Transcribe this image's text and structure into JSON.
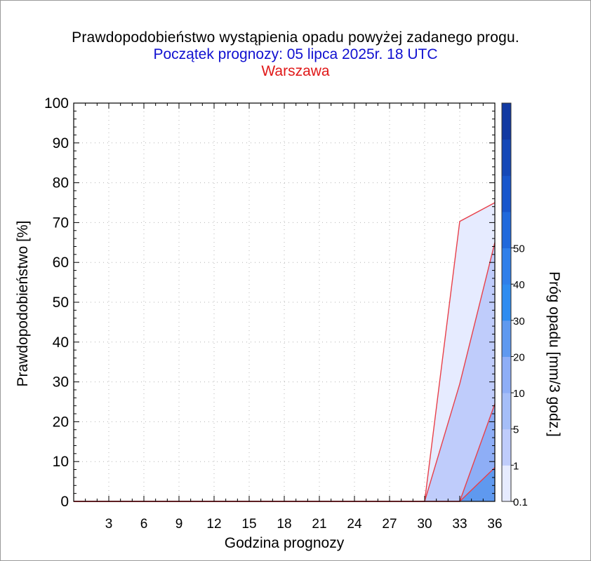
{
  "chart_data": {
    "type": "area",
    "title": "Prawdopodobieństwo wystąpienia opadu powyżej zadanego progu.",
    "subtitle": "Początek prognozy: 05 lipca 2025r. 18 UTC",
    "location": "Warszawa",
    "xlabel": "Godzina prognozy",
    "ylabel": "Prawdopodobieństwo [%]",
    "colorbar_label": "Próg opadu [mm/3 godz.]",
    "xlim": [
      0,
      36
    ],
    "ylim": [
      0,
      100
    ],
    "x_ticks": [
      "3",
      "6",
      "9",
      "12",
      "15",
      "18",
      "21",
      "24",
      "27",
      "30",
      "33",
      "36"
    ],
    "y_ticks": [
      "0",
      "10",
      "20",
      "30",
      "40",
      "50",
      "60",
      "70",
      "80",
      "90",
      "100"
    ],
    "grid": true,
    "x": [
      0,
      3,
      6,
      9,
      12,
      15,
      18,
      21,
      24,
      27,
      30,
      33,
      36
    ],
    "series": [
      {
        "name": "0.1",
        "color": "#e6ebff",
        "values": [
          0,
          0,
          0,
          0,
          0,
          0,
          0,
          0,
          0,
          0,
          0,
          70.3,
          75
        ]
      },
      {
        "name": "1",
        "color": "#bfccfb",
        "values": [
          0,
          0,
          0,
          0,
          0,
          0,
          0,
          0,
          0,
          0,
          0,
          29.5,
          65
        ]
      },
      {
        "name": "5",
        "color": "#8eaef6",
        "values": [
          0,
          0,
          0,
          0,
          0,
          0,
          0,
          0,
          0,
          0,
          0,
          0,
          24.5
        ]
      },
      {
        "name": "10",
        "color": "#5f99ef",
        "values": [
          0,
          0,
          0,
          0,
          0,
          0,
          0,
          0,
          0,
          0,
          0,
          0,
          8.5
        ]
      }
    ],
    "line_color": "#e8404a",
    "colorbar": {
      "tick_labels": [
        "0.1",
        "1",
        "5",
        "10",
        "20",
        "30",
        "40",
        "50"
      ],
      "colors": [
        "#e6ebff",
        "#bfccfb",
        "#a5bef8",
        "#8eaef6",
        "#5f99ef",
        "#2e8cf0",
        "#2f7fea",
        "#2069dc",
        "#1856cc",
        "#1548b8",
        "#1139a2"
      ]
    }
  }
}
